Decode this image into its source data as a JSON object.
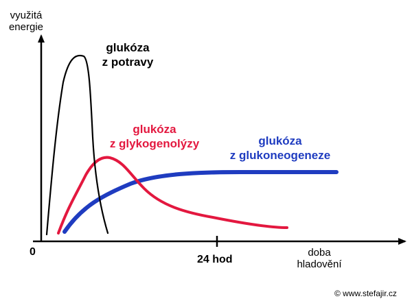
{
  "axes": {
    "y_title_line1": "využitá",
    "y_title_line2": "energie",
    "origin": "0",
    "x_tick_label": "24 hod",
    "x_title_line1": "doba",
    "x_title_line2": "hladovění"
  },
  "curves": {
    "food": {
      "line1": "glukóza",
      "line2": "z potravy",
      "color": "#000000"
    },
    "glycogenolysis": {
      "line1": "glukóza",
      "line2": "z glykogenolýzy",
      "color": "#e3183f"
    },
    "gluconeogenesis": {
      "line1": "glukóza",
      "line2": "z glukoneogeneze",
      "color": "#1f3cc0"
    }
  },
  "copyright": "© www.stefajir.cz"
}
